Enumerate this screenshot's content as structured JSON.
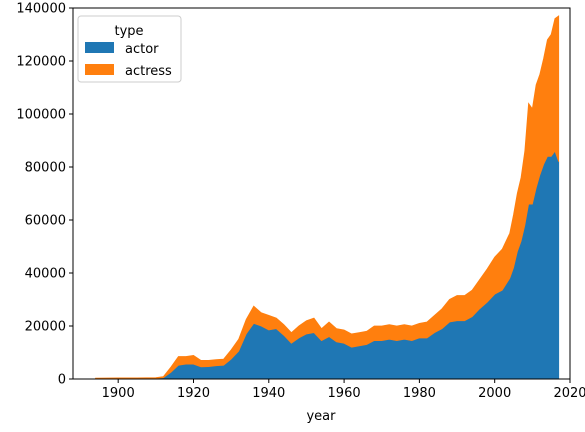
{
  "chart_data": {
    "type": "area",
    "stacked": true,
    "title": "",
    "xlabel": "year",
    "ylabel": "",
    "xlim": [
      1888,
      2020
    ],
    "ylim": [
      0,
      140000
    ],
    "x_ticks": [
      1900,
      1920,
      1940,
      1960,
      1980,
      2000,
      2020
    ],
    "y_ticks": [
      0,
      20000,
      40000,
      60000,
      80000,
      100000,
      120000,
      140000
    ],
    "legend": {
      "title": "type",
      "position": "top-left"
    },
    "series": [
      {
        "name": "actor",
        "color": "#1f77b4",
        "points": [
          [
            1894,
            200
          ],
          [
            1900,
            250
          ],
          [
            1905,
            250
          ],
          [
            1910,
            300
          ],
          [
            1912,
            500
          ],
          [
            1914,
            2500
          ],
          [
            1916,
            5200
          ],
          [
            1918,
            5600
          ],
          [
            1920,
            5600
          ],
          [
            1922,
            4600
          ],
          [
            1924,
            4700
          ],
          [
            1926,
            5000
          ],
          [
            1928,
            5200
          ],
          [
            1930,
            7500
          ],
          [
            1932,
            10500
          ],
          [
            1934,
            17000
          ],
          [
            1936,
            21000
          ],
          [
            1938,
            20000
          ],
          [
            1940,
            18500
          ],
          [
            1942,
            19000
          ],
          [
            1944,
            16500
          ],
          [
            1946,
            13500
          ],
          [
            1948,
            15500
          ],
          [
            1950,
            17000
          ],
          [
            1952,
            17500
          ],
          [
            1954,
            14500
          ],
          [
            1956,
            16000
          ],
          [
            1958,
            14000
          ],
          [
            1960,
            13500
          ],
          [
            1962,
            12000
          ],
          [
            1964,
            12500
          ],
          [
            1966,
            13000
          ],
          [
            1968,
            14500
          ],
          [
            1970,
            14500
          ],
          [
            1972,
            15000
          ],
          [
            1974,
            14500
          ],
          [
            1976,
            15000
          ],
          [
            1978,
            14500
          ],
          [
            1980,
            15500
          ],
          [
            1982,
            15500
          ],
          [
            1984,
            17500
          ],
          [
            1986,
            19000
          ],
          [
            1988,
            21500
          ],
          [
            1990,
            22000
          ],
          [
            1992,
            22000
          ],
          [
            1994,
            23500
          ],
          [
            1996,
            26500
          ],
          [
            1998,
            29000
          ],
          [
            2000,
            32000
          ],
          [
            2002,
            33500
          ],
          [
            2004,
            38000
          ],
          [
            2005,
            42000
          ],
          [
            2006,
            48000
          ],
          [
            2007,
            52000
          ],
          [
            2008,
            58000
          ],
          [
            2009,
            66000
          ],
          [
            2010,
            66000
          ],
          [
            2011,
            72000
          ],
          [
            2012,
            77000
          ],
          [
            2013,
            81000
          ],
          [
            2014,
            84000
          ],
          [
            2015,
            84000
          ],
          [
            2016,
            86000
          ],
          [
            2017,
            82000
          ]
        ]
      },
      {
        "name": "actress",
        "color": "#ff7f0e",
        "points": [
          [
            1894,
            100
          ],
          [
            1900,
            150
          ],
          [
            1905,
            150
          ],
          [
            1910,
            200
          ],
          [
            1912,
            400
          ],
          [
            1914,
            2000
          ],
          [
            1916,
            3300
          ],
          [
            1918,
            2900
          ],
          [
            1920,
            3300
          ],
          [
            1922,
            2400
          ],
          [
            1924,
            2300
          ],
          [
            1926,
            2300
          ],
          [
            1928,
            2300
          ],
          [
            1930,
            3500
          ],
          [
            1932,
            4500
          ],
          [
            1934,
            5500
          ],
          [
            1936,
            6500
          ],
          [
            1938,
            5000
          ],
          [
            1940,
            5500
          ],
          [
            1942,
            4000
          ],
          [
            1944,
            4000
          ],
          [
            1946,
            4000
          ],
          [
            1948,
            4500
          ],
          [
            1950,
            5000
          ],
          [
            1952,
            5500
          ],
          [
            1954,
            4500
          ],
          [
            1956,
            5500
          ],
          [
            1958,
            5000
          ],
          [
            1960,
            5000
          ],
          [
            1962,
            5000
          ],
          [
            1964,
            5000
          ],
          [
            1966,
            5000
          ],
          [
            1968,
            5500
          ],
          [
            1970,
            5500
          ],
          [
            1972,
            5500
          ],
          [
            1974,
            5500
          ],
          [
            1976,
            5500
          ],
          [
            1978,
            5500
          ],
          [
            1980,
            5500
          ],
          [
            1982,
            6000
          ],
          [
            1984,
            6500
          ],
          [
            1986,
            7500
          ],
          [
            1988,
            8500
          ],
          [
            1990,
            9500
          ],
          [
            1992,
            9500
          ],
          [
            1994,
            10000
          ],
          [
            1996,
            11000
          ],
          [
            1998,
            12500
          ],
          [
            2000,
            14000
          ],
          [
            2002,
            15500
          ],
          [
            2004,
            17000
          ],
          [
            2005,
            20000
          ],
          [
            2006,
            22000
          ],
          [
            2007,
            24000
          ],
          [
            2008,
            28000
          ],
          [
            2009,
            38000
          ],
          [
            2010,
            36000
          ],
          [
            2011,
            39000
          ],
          [
            2012,
            38000
          ],
          [
            2013,
            40000
          ],
          [
            2014,
            44000
          ],
          [
            2015,
            46000
          ],
          [
            2016,
            50000
          ],
          [
            2017,
            55000
          ]
        ]
      }
    ]
  }
}
